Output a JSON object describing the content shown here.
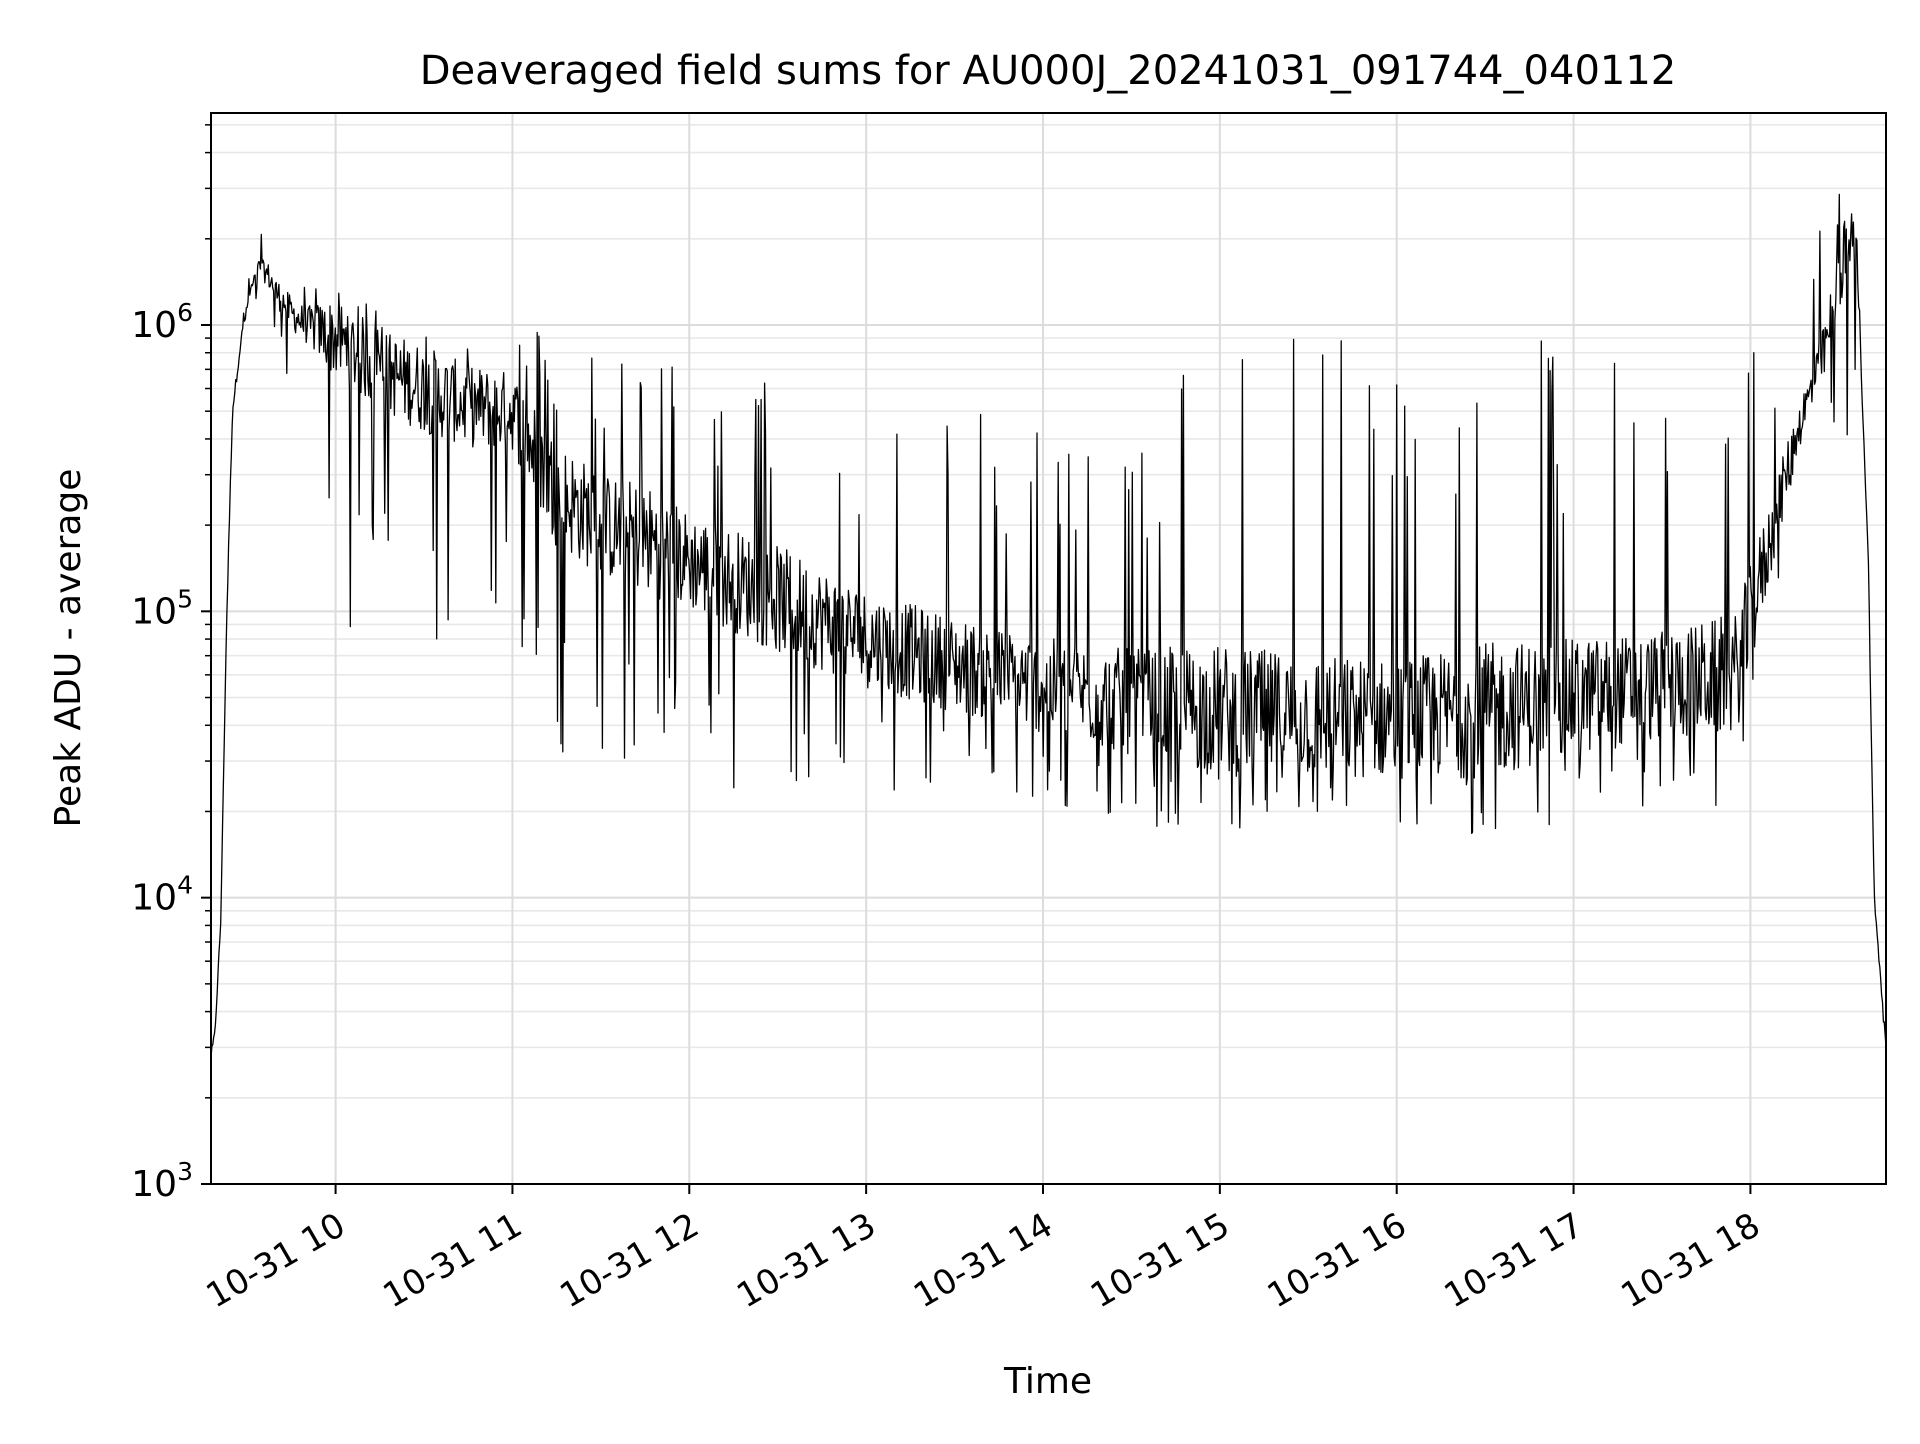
{
  "chart_data": {
    "type": "line",
    "title": "Deaveraged field sums for AU000J_20241031_091744_040112",
    "xlabel": "Time",
    "ylabel": "Peak ADU - average",
    "yscale": "log",
    "ylim": [
      1000,
      5500000
    ],
    "xlim": [
      "2024-10-31 09:17:44",
      "2024-10-31 18:46:00"
    ],
    "x_ticks": [
      {
        "t": "2024-10-31 10:00",
        "label": "10-31 10"
      },
      {
        "t": "2024-10-31 11:00",
        "label": "10-31 11"
      },
      {
        "t": "2024-10-31 12:00",
        "label": "10-31 12"
      },
      {
        "t": "2024-10-31 13:00",
        "label": "10-31 13"
      },
      {
        "t": "2024-10-31 14:00",
        "label": "10-31 14"
      },
      {
        "t": "2024-10-31 15:00",
        "label": "10-31 15"
      },
      {
        "t": "2024-10-31 16:00",
        "label": "10-31 16"
      },
      {
        "t": "2024-10-31 17:00",
        "label": "10-31 17"
      },
      {
        "t": "2024-10-31 18:00",
        "label": "10-31 18"
      }
    ],
    "y_ticks": [
      {
        "value": 1000,
        "base": "10",
        "exp": "3"
      },
      {
        "value": 10000,
        "base": "10",
        "exp": "4"
      },
      {
        "value": 100000,
        "base": "10",
        "exp": "5"
      },
      {
        "value": 1000000,
        "base": "10",
        "exp": "6"
      }
    ],
    "grid": "major and minor",
    "line_color": "#000000",
    "series": [
      {
        "x": [
          "2024-10-31 09:17:44",
          "2024-10-31 09:19",
          "2024-10-31 09:21",
          "2024-10-31 09:23",
          "2024-10-31 09:25",
          "2024-10-31 09:28",
          "2024-10-31 09:31",
          "2024-10-31 09:34",
          "2024-10-31 09:37",
          "2024-10-31 09:40",
          "2024-10-31 09:45",
          "2024-10-31 09:50",
          "2024-10-31 10:00",
          "2024-10-31 10:15",
          "2024-10-31 10:30",
          "2024-10-31 10:45",
          "2024-10-31 11:00",
          "2024-10-31 11:15",
          "2024-10-31 11:30",
          "2024-10-31 11:45",
          "2024-10-31 12:00",
          "2024-10-31 12:30",
          "2024-10-31 13:00",
          "2024-10-31 13:30",
          "2024-10-31 14:00",
          "2024-10-31 14:30",
          "2024-10-31 15:00",
          "2024-10-31 15:30",
          "2024-10-31 16:00",
          "2024-10-31 16:30",
          "2024-10-31 17:00",
          "2024-10-31 17:30",
          "2024-10-31 17:55",
          "2024-10-31 18:05",
          "2024-10-31 18:15",
          "2024-10-31 18:25",
          "2024-10-31 18:32",
          "2024-10-31 18:36",
          "2024-10-31 18:40",
          "2024-10-31 18:42",
          "2024-10-31 18:44",
          "2024-10-31 18:46"
        ],
        "typical": [
          2800,
          3300,
          8000,
          90000,
          500000,
          900000,
          1300000,
          1600000,
          1500000,
          1300000,
          1100000,
          1000000,
          900000,
          700000,
          600000,
          520000,
          500000,
          260000,
          200000,
          180000,
          150000,
          110000,
          80000,
          65000,
          55000,
          48000,
          45000,
          43000,
          42000,
          45000,
          50000,
          55000,
          60000,
          150000,
          400000,
          800000,
          1800000,
          2000000,
          150000,
          10000,
          5500,
          3000
        ],
        "upper": [
          2800,
          3300,
          8000,
          90000,
          500000,
          1000000,
          1600000,
          2200000,
          3000000,
          2000000,
          1800000,
          1500000,
          1300000,
          1200000,
          1100000,
          1050000,
          1100000,
          900000,
          900000,
          850000,
          700000,
          650000,
          550000,
          500000,
          480000,
          600000,
          1200000,
          1100000,
          900000,
          1200000,
          900000,
          700000,
          1200000,
          1100000,
          1300000,
          3000000,
          3600000,
          2200000,
          150000,
          10000,
          5500,
          3000
        ],
        "lower": [
          2800,
          3300,
          8000,
          90000,
          500000,
          800000,
          1100000,
          1300000,
          1300000,
          800000,
          600000,
          450000,
          90000,
          80000,
          60000,
          70000,
          80000,
          25000,
          30000,
          22000,
          28000,
          18000,
          22000,
          22000,
          20000,
          18000,
          16000,
          19000,
          18000,
          14000,
          19000,
          20000,
          21000,
          60000,
          300000,
          500000,
          350000,
          700000,
          150000,
          10000,
          4500,
          3000
        ]
      }
    ]
  }
}
